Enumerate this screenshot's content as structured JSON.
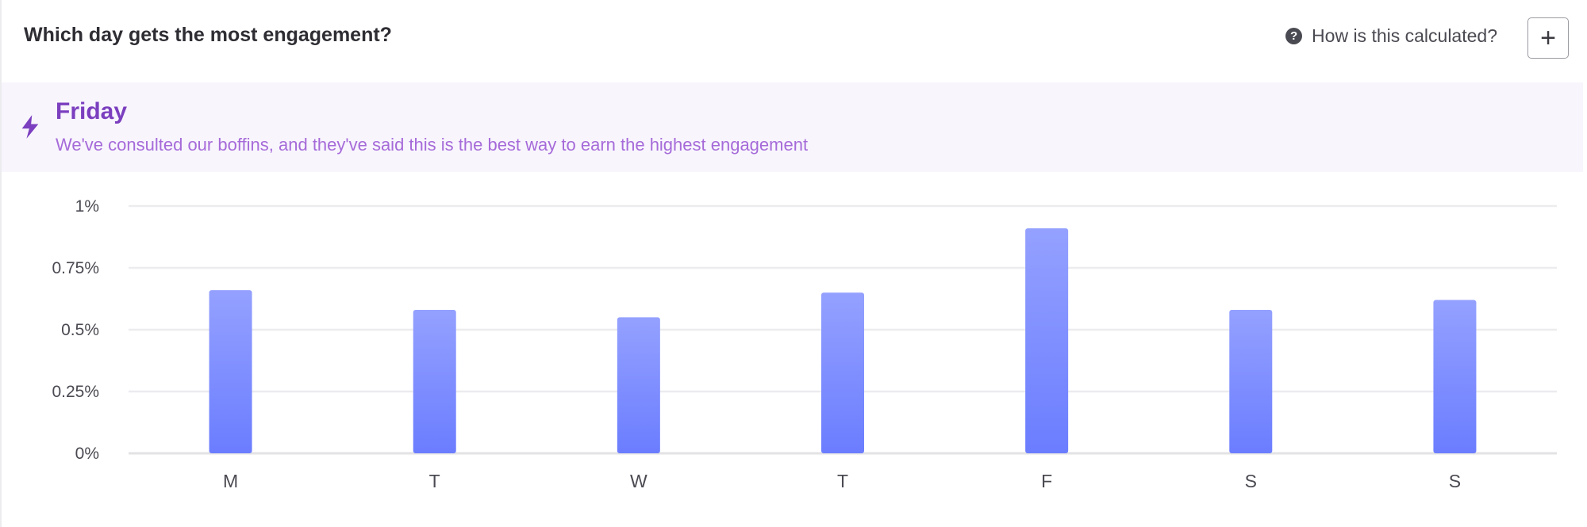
{
  "header": {
    "title": "Which day gets the most engagement?",
    "help_label": "How is this calculated?",
    "help_icon": "help-circle-icon",
    "add_label": "+"
  },
  "banner": {
    "icon": "lightning-bolt-icon",
    "title": "Friday",
    "subtitle": "We've consulted our boffins, and they've said this is the best way to earn the highest engagement",
    "accent_color": "#7b3fbf",
    "subtitle_color": "#a66bd9"
  },
  "chart_data": {
    "type": "bar",
    "categories": [
      "M",
      "T",
      "W",
      "T",
      "F",
      "S",
      "S"
    ],
    "values": [
      0.66,
      0.58,
      0.55,
      0.65,
      0.91,
      0.58,
      0.62
    ],
    "ylim": [
      0,
      1
    ],
    "yticks": [
      {
        "value": 0,
        "label": "0%"
      },
      {
        "value": 0.25,
        "label": "0.25%"
      },
      {
        "value": 0.5,
        "label": "0.5%"
      },
      {
        "value": 0.75,
        "label": "0.75%"
      },
      {
        "value": 1,
        "label": "1%"
      }
    ],
    "grid": true,
    "bar_color_top": "#94a1ff",
    "bar_color_bottom": "#6b7dff",
    "title": "",
    "xlabel": "",
    "ylabel": ""
  }
}
